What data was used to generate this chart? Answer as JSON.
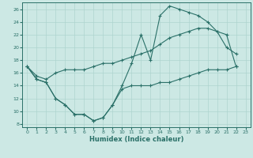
{
  "xlabel": "Humidex (Indice chaleur)",
  "bg_color": "#cce8e4",
  "line_color": "#2a7068",
  "grid_color": "#aed4cf",
  "xlim": [
    -0.5,
    23.5
  ],
  "ylim": [
    7.5,
    27
  ],
  "yticks": [
    8,
    10,
    12,
    14,
    16,
    18,
    20,
    22,
    24,
    26
  ],
  "xticks": [
    0,
    1,
    2,
    3,
    4,
    5,
    6,
    7,
    8,
    9,
    10,
    11,
    12,
    13,
    14,
    15,
    16,
    17,
    18,
    19,
    20,
    21,
    22,
    23
  ],
  "line1_x": [
    0,
    1,
    2,
    3,
    4,
    5,
    6,
    7,
    8,
    9,
    10,
    11,
    12,
    13,
    14,
    15,
    16,
    17,
    18,
    19,
    20,
    21,
    22
  ],
  "line1_y": [
    17,
    15,
    14.5,
    12,
    11,
    9.5,
    9.5,
    8.5,
    9,
    11,
    13.5,
    14,
    14,
    14,
    14.5,
    14.5,
    15,
    15.5,
    16,
    16.5,
    16.5,
    16.5,
    17
  ],
  "line2_x": [
    0,
    1,
    2,
    3,
    4,
    5,
    6,
    7,
    8,
    9,
    10,
    11,
    12,
    13,
    14,
    15,
    16,
    17,
    18,
    19,
    20,
    21,
    22
  ],
  "line2_y": [
    17,
    15.5,
    15,
    16,
    16.5,
    16.5,
    16.5,
    17,
    17.5,
    17.5,
    18,
    18.5,
    19,
    19.5,
    20.5,
    21.5,
    22,
    22.5,
    23,
    23,
    22.5,
    22,
    17
  ],
  "line3_x": [
    0,
    1,
    2,
    3,
    4,
    5,
    6,
    7,
    8,
    9,
    10,
    11,
    12,
    13,
    14,
    15,
    16,
    17,
    18,
    19,
    20,
    21,
    22
  ],
  "line3_y": [
    17,
    15,
    14.5,
    12,
    11,
    9.5,
    9.5,
    8.5,
    9,
    11,
    14,
    17.5,
    22,
    18,
    25,
    26.5,
    26,
    25.5,
    25,
    24,
    22.5,
    20,
    19
  ]
}
